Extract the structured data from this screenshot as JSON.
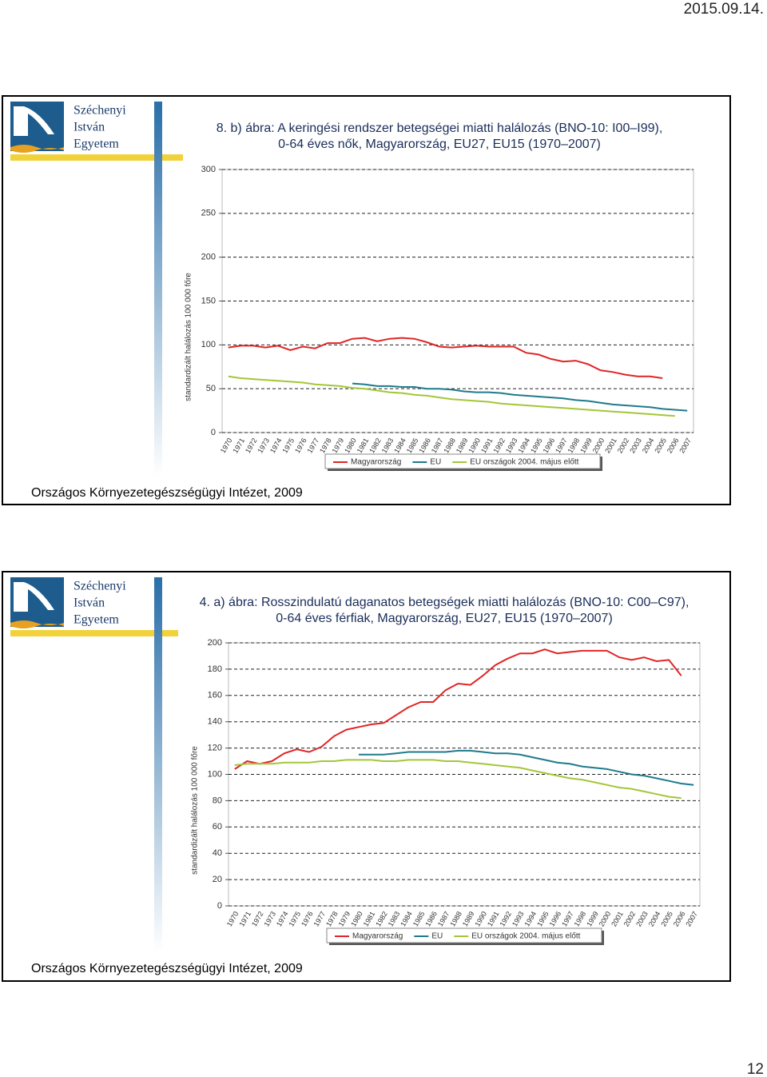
{
  "date": "2015.09.14.",
  "page_number": "12",
  "logo": {
    "lines": [
      "Széchenyi",
      "István",
      "Egyetem"
    ]
  },
  "slides": [
    {
      "source": "Országos Környezetegészségügyi Intézet, 2009"
    },
    {
      "source": "Országos Környezetegészségügyi Intézet, 2009"
    }
  ],
  "chart_data": [
    {
      "type": "line",
      "title": "8. b) ábra: A keringési rendszer betegségei miatti halálozás (BNO-10: I00–I99),",
      "subtitle": "0-64 éves nők, Magyarország, EU27, EU15 (1970–2007)",
      "y_label": "standardizált halálozás 100 000 főre",
      "x": [
        1970,
        1971,
        1972,
        1973,
        1974,
        1975,
        1976,
        1977,
        1978,
        1979,
        1980,
        1981,
        1982,
        1983,
        1984,
        1985,
        1986,
        1987,
        1988,
        1989,
        1990,
        1991,
        1992,
        1993,
        1994,
        1995,
        1996,
        1997,
        1998,
        1999,
        2000,
        2001,
        2002,
        2003,
        2004,
        2005,
        2006,
        2007
      ],
      "ylim": [
        0,
        300
      ],
      "yticks": [
        0,
        50,
        100,
        150,
        200,
        250,
        300
      ],
      "grid": true,
      "series": [
        {
          "name": "Magyarország",
          "color": "#e02525",
          "values": [
            97,
            99,
            99,
            97,
            99,
            94,
            98,
            96,
            102,
            102,
            107,
            108,
            104,
            107,
            108,
            107,
            103,
            98,
            97,
            98,
            99,
            98,
            98,
            98,
            91,
            89,
            84,
            81,
            82,
            78,
            71,
            69,
            66,
            64,
            64,
            62,
            null,
            null
          ]
        },
        {
          "name": "EU",
          "color": "#1f7a8c",
          "values": [
            null,
            null,
            null,
            null,
            null,
            null,
            null,
            null,
            null,
            null,
            56,
            55,
            53,
            53,
            52,
            52,
            50,
            50,
            49,
            47,
            46,
            46,
            45,
            43,
            42,
            41,
            40,
            39,
            37,
            36,
            34,
            32,
            31,
            30,
            29,
            27,
            26,
            25
          ]
        },
        {
          "name": "EU országok 2004. május előtt",
          "color": "#a4c639",
          "values": [
            64,
            62,
            61,
            60,
            59,
            58,
            57,
            55,
            54,
            53,
            51,
            50,
            48,
            46,
            45,
            43,
            42,
            40,
            38,
            37,
            36,
            35,
            33,
            32,
            31,
            30,
            29,
            28,
            27,
            26,
            25,
            24,
            23,
            22,
            21,
            20,
            19,
            null
          ]
        }
      ]
    },
    {
      "type": "line",
      "title": "4. a) ábra: Rosszindulatú daganatos betegségek miatti halálozás (BNO-10: C00–C97),",
      "subtitle": "0-64 éves férfiak, Magyarország, EU27, EU15 (1970–2007)",
      "y_label": "standardizált halálozás 100 000 főre",
      "x": [
        1970,
        1971,
        1972,
        1973,
        1974,
        1975,
        1976,
        1977,
        1978,
        1979,
        1980,
        1981,
        1982,
        1983,
        1984,
        1985,
        1986,
        1987,
        1988,
        1989,
        1990,
        1991,
        1992,
        1993,
        1994,
        1995,
        1996,
        1997,
        1998,
        1999,
        2000,
        2001,
        2002,
        2003,
        2004,
        2005,
        2006,
        2007
      ],
      "ylim": [
        0,
        200
      ],
      "yticks": [
        0,
        20,
        40,
        60,
        80,
        100,
        120,
        140,
        160,
        180,
        200
      ],
      "grid": true,
      "series": [
        {
          "name": "Magyarország",
          "color": "#e02525",
          "values": [
            104,
            110,
            108,
            110,
            116,
            119,
            117,
            121,
            129,
            134,
            136,
            138,
            139,
            145,
            151,
            155,
            155,
            164,
            169,
            168,
            175,
            183,
            188,
            192,
            192,
            195,
            192,
            193,
            194,
            194,
            194,
            189,
            187,
            189,
            186,
            187,
            175,
            null
          ]
        },
        {
          "name": "EU",
          "color": "#1f7a8c",
          "values": [
            null,
            null,
            null,
            null,
            null,
            null,
            null,
            null,
            null,
            null,
            115,
            115,
            115,
            116,
            117,
            117,
            117,
            117,
            118,
            118,
            117,
            116,
            116,
            115,
            113,
            111,
            109,
            108,
            106,
            105,
            104,
            102,
            100,
            99,
            97,
            95,
            93,
            92
          ]
        },
        {
          "name": "EU országok 2004. május előtt",
          "color": "#a4c639",
          "values": [
            107,
            108,
            108,
            108,
            109,
            109,
            109,
            110,
            110,
            111,
            111,
            111,
            110,
            110,
            111,
            111,
            111,
            110,
            110,
            109,
            108,
            107,
            106,
            105,
            103,
            101,
            99,
            97,
            96,
            94,
            92,
            90,
            89,
            87,
            85,
            83,
            82,
            null
          ]
        }
      ]
    }
  ]
}
